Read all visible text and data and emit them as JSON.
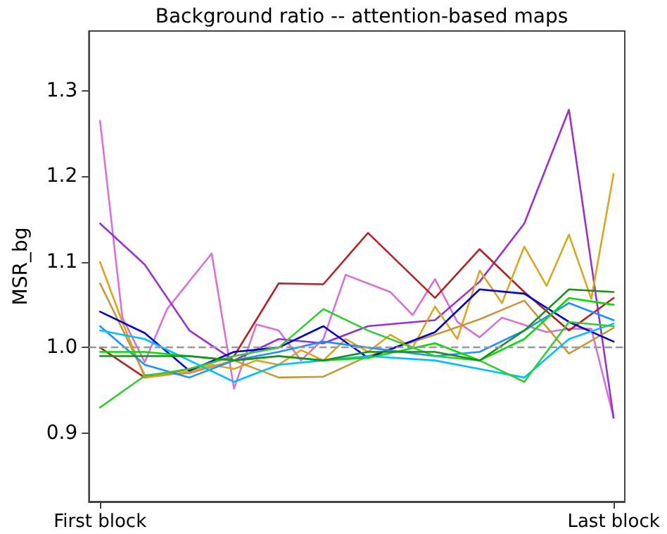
{
  "chart_data": {
    "type": "line",
    "title": "Background ratio -- attention-based maps",
    "ylabel": "MSR_bg",
    "categories": [
      "First block",
      null,
      null,
      null,
      null,
      null,
      null,
      null,
      null,
      null,
      null,
      null,
      null,
      null,
      null,
      null,
      null,
      null,
      null,
      null,
      null,
      null,
      null,
      "Last block"
    ],
    "series": [
      {
        "color": "#da70d6",
        "values": [
          1.265,
          1.035,
          0.983,
          1.045,
          null,
          1.11,
          0.952,
          1.027,
          1.02,
          0.985,
          1.01,
          1.085,
          null,
          1.065,
          1.038,
          1.08,
          1.03,
          1.012,
          1.035,
          null,
          1.018,
          1.022,
          1.022,
          0.918
        ]
      },
      {
        "color": "#9932cc",
        "values": [
          1.145,
          null,
          1.097,
          null,
          1.02,
          null,
          0.985,
          null,
          1.01,
          null,
          1.005,
          null,
          1.025,
          null,
          null,
          1.032,
          null,
          1.077,
          null,
          1.145,
          null,
          1.278,
          null,
          0.918
        ]
      },
      {
        "color": "#b22222",
        "values": [
          1.0,
          null,
          0.965,
          null,
          0.975,
          null,
          0.99,
          null,
          1.075,
          null,
          1.074,
          null,
          1.134,
          null,
          null,
          1.058,
          null,
          1.115,
          null,
          1.065,
          null,
          1.02,
          null,
          1.058
        ]
      },
      {
        "color": "#daa520",
        "values": [
          1.1,
          1.03,
          0.965,
          0.968,
          0.972,
          0.98,
          0.975,
          0.985,
          0.98,
          0.997,
          0.985,
          1.01,
          0.995,
          1.015,
          1.0,
          1.048,
          1.01,
          1.09,
          1.052,
          1.118,
          1.072,
          1.132,
          1.057,
          1.203
        ]
      },
      {
        "color": "#c8963c",
        "values": [
          1.075,
          null,
          0.968,
          null,
          0.97,
          null,
          0.985,
          null,
          0.965,
          null,
          0.966,
          null,
          0.99,
          null,
          null,
          1.015,
          null,
          1.033,
          null,
          1.055,
          null,
          0.993,
          null,
          1.023
        ]
      },
      {
        "color": "#0000cd",
        "values": [
          1.042,
          null,
          1.017,
          null,
          0.973,
          null,
          0.995,
          null,
          1.0,
          null,
          1.025,
          null,
          0.988,
          null,
          null,
          1.018,
          null,
          1.068,
          null,
          1.063,
          null,
          1.03,
          null,
          1.007
        ]
      },
      {
        "color": "#1e90ff",
        "values": [
          1.025,
          null,
          0.98,
          null,
          0.965,
          null,
          0.985,
          null,
          0.995,
          null,
          1.007,
          null,
          1.0,
          null,
          null,
          0.99,
          null,
          0.995,
          null,
          1.02,
          null,
          1.052,
          null,
          1.032
        ]
      },
      {
        "color": "#00bfff",
        "values": [
          1.02,
          null,
          1.01,
          null,
          0.985,
          null,
          0.96,
          null,
          0.98,
          null,
          0.985,
          null,
          0.99,
          null,
          null,
          0.985,
          null,
          0.975,
          null,
          0.965,
          null,
          1.01,
          null,
          1.028
        ]
      },
      {
        "color": "#32cd32",
        "values": [
          0.93,
          null,
          0.967,
          null,
          0.975,
          null,
          0.99,
          null,
          1.0,
          null,
          1.045,
          null,
          1.02,
          null,
          null,
          0.99,
          null,
          0.985,
          null,
          0.96,
          null,
          1.03,
          null,
          1.025
        ]
      },
      {
        "color": "#00e000",
        "values": [
          0.995,
          null,
          0.995,
          null,
          0.99,
          null,
          0.985,
          null,
          0.99,
          null,
          0.985,
          null,
          0.988,
          null,
          null,
          1.005,
          null,
          0.985,
          null,
          1.01,
          null,
          1.058,
          null,
          1.05
        ]
      },
      {
        "color": "#228b22",
        "values": [
          0.99,
          null,
          0.99,
          null,
          0.99,
          null,
          0.985,
          null,
          0.99,
          null,
          0.985,
          null,
          0.995,
          null,
          null,
          0.995,
          null,
          0.985,
          null,
          1.02,
          null,
          1.068,
          null,
          1.065
        ]
      }
    ],
    "ylim": [
      0.82,
      1.37
    ],
    "yticks": [
      0.9,
      {
        "value": 1.0,
        "label": "1.0"
      },
      1.1,
      1.2,
      1.3
    ],
    "ref_lines": [
      {
        "axis": "y",
        "value": 1.0,
        "color": "#999999",
        "line_style": "dashed"
      }
    ],
    "grid": false,
    "marker": "none",
    "line_style": "solid"
  }
}
